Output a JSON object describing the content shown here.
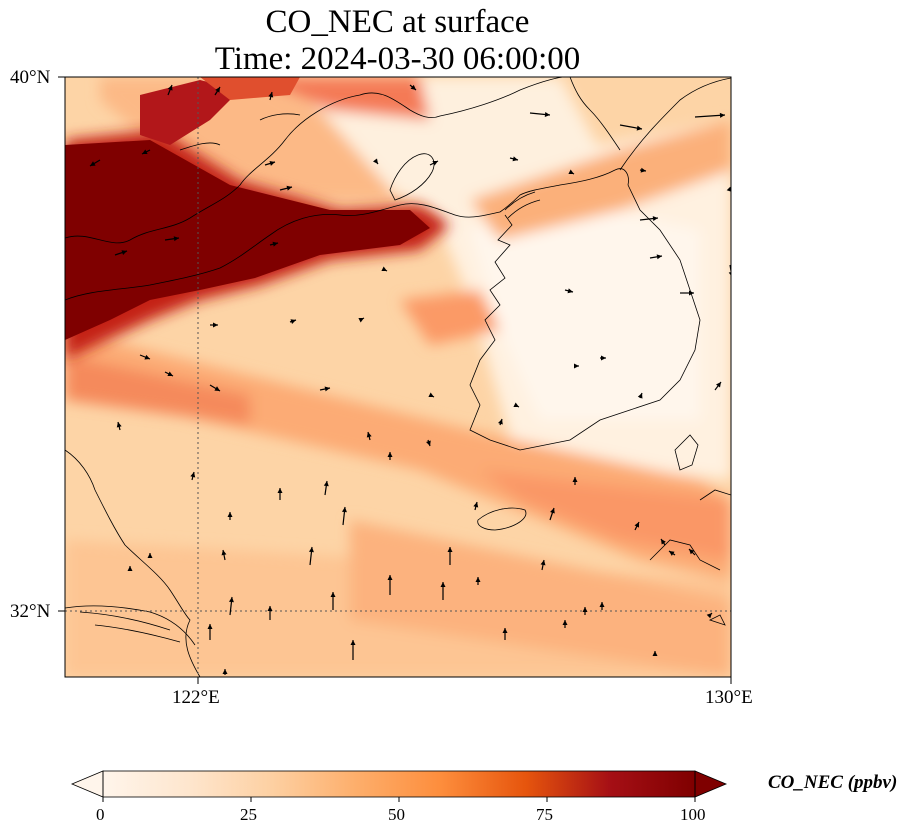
{
  "title": {
    "line1": "CO_NEC at surface",
    "line2": "Time: 2024-03-30 06:00:00"
  },
  "map": {
    "extent": {
      "lon_min": 120,
      "lon_max": 130,
      "lat_min": 31,
      "lat_max": 40
    },
    "lat_ticks": [
      {
        "value": 40,
        "label": "40°N"
      },
      {
        "value": 32,
        "label": "32°N"
      }
    ],
    "lon_ticks": [
      {
        "value": 122,
        "label": "122°E"
      },
      {
        "value": 130,
        "label": "130°E"
      }
    ],
    "gridlines": {
      "lon": [
        122
      ],
      "lat": [
        32
      ],
      "style": "dotted"
    },
    "field": "CO_NEC",
    "overlay": "wind-vectors"
  },
  "colorbar": {
    "label": "CO_NEC (ppbv)",
    "ticks": [
      "0",
      "25",
      "50",
      "75",
      "100"
    ],
    "min": 0,
    "max": 100,
    "extend": "both",
    "colors": [
      "#fff5eb",
      "#fee6ce",
      "#fdd0a2",
      "#fdae6b",
      "#fd8d3c",
      "#e6550d",
      "#a50f15",
      "#7f0000"
    ]
  }
}
